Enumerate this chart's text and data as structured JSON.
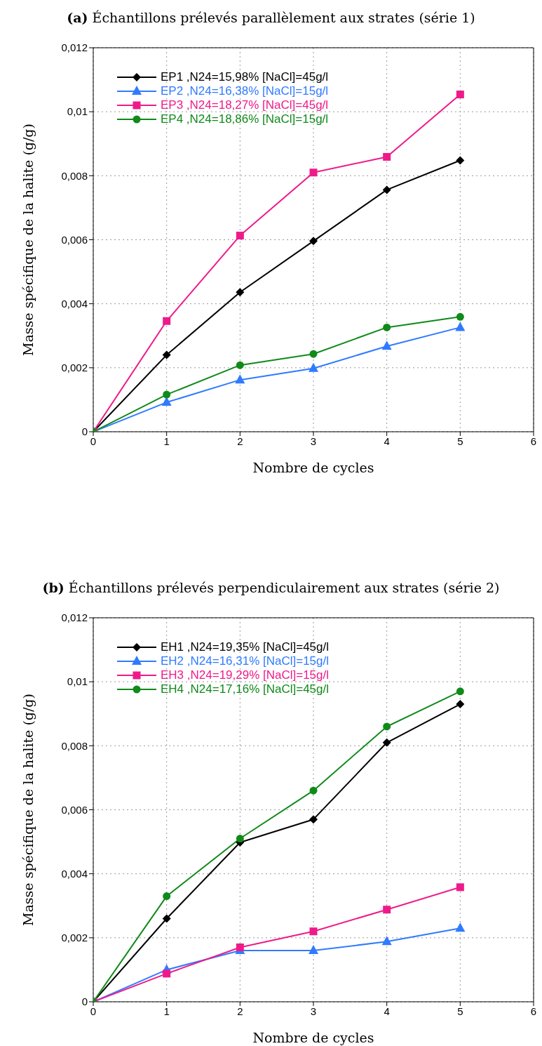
{
  "chart_data": [
    {
      "type": "line",
      "title": "(a) Échantillons prélevés parallèlement aux strates (série 1)",
      "xlabel": "Nombre de cycles",
      "ylabel": "Masse spécifique de la halite (g/g)",
      "x": [
        0,
        1,
        2,
        3,
        4,
        5
      ],
      "xlim": [
        0,
        6
      ],
      "xticks": [
        0,
        1,
        2,
        3,
        4,
        5,
        6
      ],
      "ylim": [
        0,
        0.012
      ],
      "yticks": [
        0,
        {
          "value": 0.002,
          "label": "0,002"
        },
        {
          "value": 0.004,
          "label": "0,004"
        },
        {
          "value": 0.006,
          "label": "0,006"
        },
        {
          "value": 0.008,
          "label": "0,008"
        },
        {
          "value": 0.01,
          "label": "0,01"
        },
        {
          "value": 0.012,
          "label": "0,012"
        }
      ],
      "grid": true,
      "legend": "top left",
      "line_style": "solid",
      "series": [
        {
          "name": "EP1 ,N24=15,98% [NaCl]=45g/l",
          "color": "#000000",
          "marker": "diamond",
          "values": [
            0,
            0.0024,
            0.00436,
            0.00596,
            0.00756,
            0.00848
          ]
        },
        {
          "name": "EP2 ,N24=16,38% [NaCl]=15g/l",
          "color": "#2f7bff",
          "marker": "triangle",
          "values": [
            0,
            0.00092,
            0.00162,
            0.00198,
            0.00267,
            0.00326
          ]
        },
        {
          "name": "EP3 ,N24=18,27% [NaCl]=45g/l",
          "color": "#ef1a8a",
          "marker": "square",
          "values": [
            0,
            0.00346,
            0.00613,
            0.0081,
            0.00859,
            0.01054
          ]
        },
        {
          "name": "EP4 ,N24=18,86% [NaCl]=15g/l",
          "color": "#108a1a",
          "marker": "circle",
          "values": [
            0,
            0.00116,
            0.00208,
            0.00243,
            0.00326,
            0.00359
          ]
        }
      ]
    },
    {
      "type": "line",
      "title": "(b) Échantillons prélevés perpendiculairement aux strates (série 2)",
      "xlabel": "Nombre de cycles",
      "ylabel": "Masse spécifique de la halite (g/g)",
      "x": [
        0,
        1,
        2,
        3,
        4,
        5
      ],
      "xlim": [
        0,
        6
      ],
      "xticks": [
        0,
        1,
        2,
        3,
        4,
        5,
        6
      ],
      "ylim": [
        0,
        0.012
      ],
      "yticks": [
        0,
        {
          "value": 0.002,
          "label": "0,002"
        },
        {
          "value": 0.004,
          "label": "0,004"
        },
        {
          "value": 0.006,
          "label": "0,006"
        },
        {
          "value": 0.008,
          "label": "0,008"
        },
        {
          "value": 0.01,
          "label": "0,01"
        },
        {
          "value": 0.012,
          "label": "0,012"
        }
      ],
      "grid": true,
      "legend": "top left",
      "line_style": "solid",
      "series": [
        {
          "name": "EH1 ,N24=19,35% [NaCl]=45g/l",
          "color": "#000000",
          "marker": "diamond",
          "values": [
            0,
            0.0026,
            0.00498,
            0.0057,
            0.0081,
            0.0093
          ]
        },
        {
          "name": "EH2 ,N24=16,31% [NaCl]=15g/l",
          "color": "#2f7bff",
          "marker": "triangle",
          "values": [
            0,
            0.001,
            0.0016,
            0.0016,
            0.00188,
            0.0023
          ]
        },
        {
          "name": "EH3 ,N24=19,29% [NaCl]=15g/l",
          "color": "#ef1a8a",
          "marker": "square",
          "values": [
            0,
            0.00088,
            0.0017,
            0.0022,
            0.00288,
            0.00358
          ]
        },
        {
          "name": "EH4 ,N24=17,16% [NaCl]=45g/l",
          "color": "#108a1a",
          "marker": "circle",
          "values": [
            0,
            0.0033,
            0.0051,
            0.0066,
            0.0086,
            0.0097
          ]
        }
      ]
    }
  ]
}
